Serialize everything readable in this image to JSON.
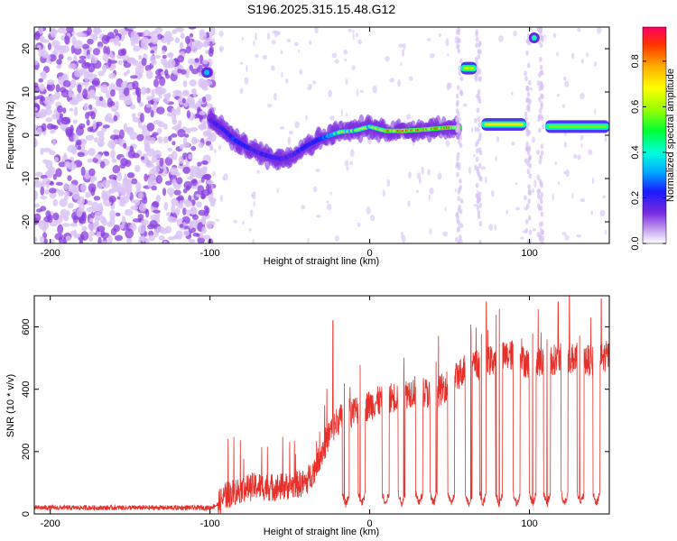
{
  "title": "S196.2025.315.15.48.G12",
  "colors": {
    "frame": "#000000",
    "snr_line": "#e8302a",
    "cloud": "#8a3ee0",
    "cloud_light": "#d9c2f5"
  },
  "chart_data": [
    {
      "type": "heatmap",
      "name": "spectrogram",
      "xlabel": "Height of straight line (km)",
      "ylabel": "Frequency (Hz)",
      "xlim": [
        -210,
        150
      ],
      "ylim": [
        -25,
        25
      ],
      "xticks": [
        -200,
        -100,
        0,
        100
      ],
      "xtick_labels": [
        "-200",
        "-100",
        "0",
        "100"
      ],
      "yticks": [
        -20,
        -10,
        0,
        10,
        20
      ],
      "ytick_labels": [
        "-20",
        "-10",
        "0",
        "10",
        "20"
      ],
      "colorbar": {
        "label": "Normalized spectral amplitude",
        "range": [
          0,
          0.95
        ],
        "ticks": [
          0.0,
          0.2,
          0.4,
          0.6,
          0.8
        ],
        "tick_labels": [
          "0.0",
          "0.2",
          "0.4",
          "0.6",
          "0.8"
        ]
      },
      "ridge": {
        "x": [
          -100,
          -92,
          -85,
          -78,
          -70,
          -62,
          -55,
          -48,
          -40,
          -32,
          -25,
          -18,
          -10,
          -5,
          0,
          5,
          10,
          20,
          30,
          40,
          50,
          56
        ],
        "y": [
          3.5,
          1.5,
          -1.0,
          -2.5,
          -4.0,
          -5.0,
          -5.5,
          -4.5,
          -2.5,
          -1.0,
          0.0,
          0.8,
          1.0,
          1.5,
          2.0,
          1.5,
          1.0,
          1.0,
          1.2,
          1.5,
          1.8,
          1.8
        ],
        "amplitude": [
          0.3,
          0.35,
          0.4,
          0.35,
          0.3,
          0.35,
          0.3,
          0.3,
          0.35,
          0.4,
          0.55,
          0.7,
          0.6,
          0.75,
          0.6,
          0.7,
          0.8,
          0.9,
          0.85,
          0.8,
          0.85,
          0.75
        ]
      },
      "segments": [
        {
          "x0": 57,
          "x1": 67,
          "y": 15.5,
          "amplitude": 0.65
        },
        {
          "x0": 70,
          "x1": 98,
          "y": 2.5,
          "amplitude": 0.75
        },
        {
          "x0": 110,
          "x1": 150,
          "y": 2.0,
          "amplitude": 0.6
        }
      ],
      "spots": [
        {
          "x": -102,
          "y": 14.5,
          "amplitude": 0.2
        },
        {
          "x": 103,
          "y": 22.5,
          "amplitude": 0.3
        }
      ]
    },
    {
      "type": "line",
      "name": "snr",
      "xlabel": "Height of straight line (km)",
      "ylabel": "SNR (10 * v/v)",
      "xlim": [
        -210,
        150
      ],
      "ylim": [
        0,
        700
      ],
      "xticks": [
        -200,
        -100,
        0,
        100
      ],
      "xtick_labels": [
        "-200",
        "-100",
        "0",
        "100"
      ],
      "yticks": [
        0,
        200,
        400,
        600
      ],
      "ytick_labels": [
        "0",
        "200",
        "400",
        "600"
      ],
      "trend": {
        "x": [
          -210,
          -100,
          -95,
          -90,
          -80,
          -70,
          -60,
          -50,
          -40,
          -35,
          -30,
          -25,
          -20,
          -10,
          0,
          10,
          20,
          30,
          40,
          50,
          60,
          70,
          80,
          90,
          100,
          110,
          120,
          130,
          140,
          150
        ],
        "y": [
          20,
          20,
          30,
          60,
          80,
          90,
          85,
          90,
          100,
          140,
          200,
          260,
          300,
          330,
          350,
          370,
          380,
          400,
          380,
          420,
          470,
          480,
          500,
          510,
          480,
          490,
          500,
          500,
          490,
          510
        ]
      },
      "dips_x": [
        -15,
        -5,
        10,
        20,
        31,
        40,
        51,
        62,
        71,
        81,
        92,
        102,
        111,
        122,
        132,
        142
      ],
      "spikes": [
        {
          "x": -23,
          "y": 620
        },
        {
          "x": 73,
          "y": 680
        },
        {
          "x": 118,
          "y": 680
        },
        {
          "x": 125,
          "y": 700
        },
        {
          "x": 145,
          "y": 690
        }
      ]
    }
  ]
}
